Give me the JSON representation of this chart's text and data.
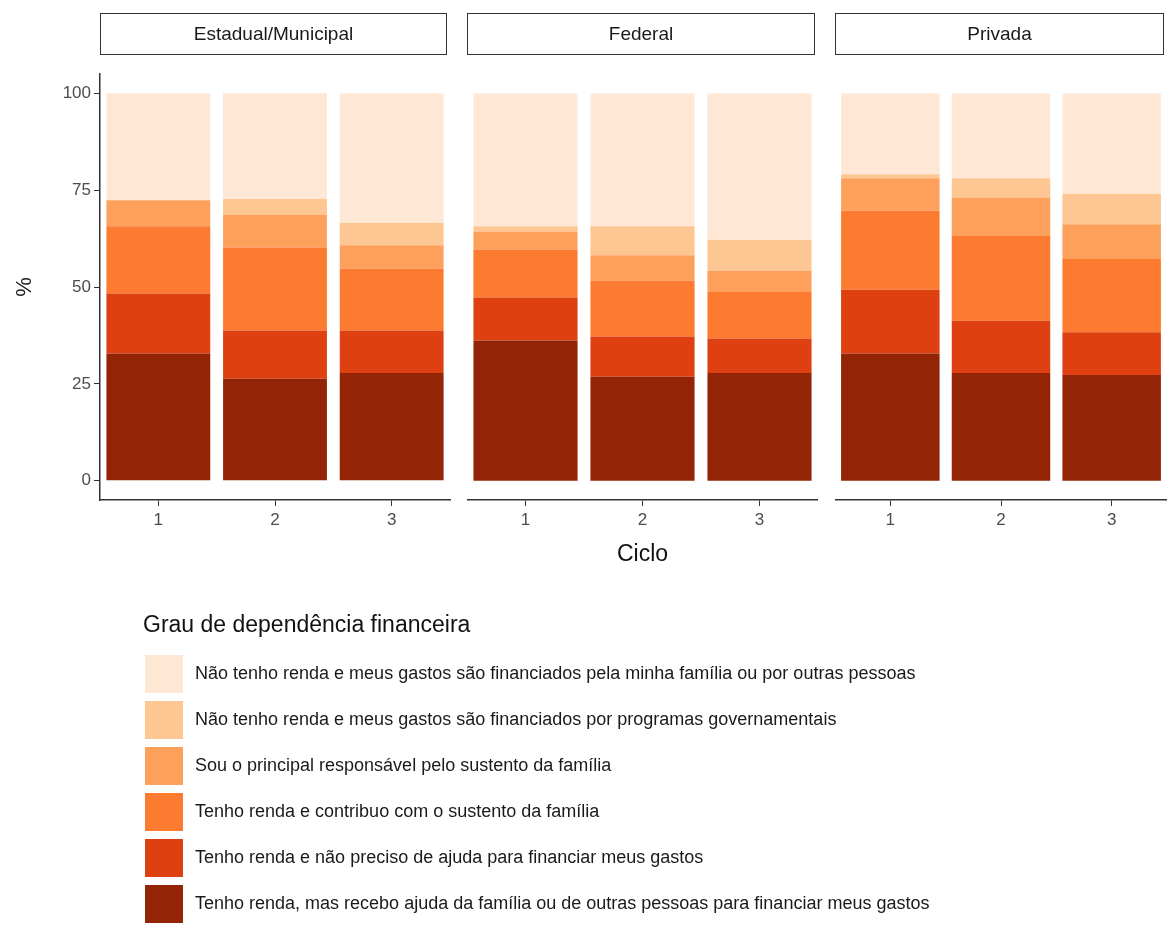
{
  "chart_data": [
    {
      "type": "bar",
      "stacked": true,
      "title": "Estadual/Municipal",
      "ylabel": "%",
      "legend": "bottom",
      "legend_title": "Grau de dependência financeira",
      "categories": [
        "1",
        "2",
        "3"
      ],
      "ylim": [
        -5,
        105
      ],
      "yticks": [
        0,
        25,
        50,
        75,
        100
      ],
      "grid": false,
      "series": [
        {
          "name": "Tenho renda, mas recebo ajuda da família ou de outras pessoas para financiar meus gastos",
          "color": "#932406",
          "values": [
            32.8,
            26.3,
            27.8
          ]
        },
        {
          "name": "Tenho renda e não preciso de ajuda para financiar meus gastos",
          "color": "#de4011",
          "values": [
            15.5,
            12.5,
            11.0
          ]
        },
        {
          "name": "Tenho renda e contribuo com o sustento da família",
          "color": "#fc7b31",
          "values": [
            17.4,
            21.4,
            15.9
          ]
        },
        {
          "name": "Sou o principal responsável pelo sustento da família",
          "color": "#fca05c",
          "values": [
            6.7,
            8.4,
            6.1
          ]
        },
        {
          "name": "Não tenho renda e meus gastos são financiados por programas governamentais",
          "color": "#fdc692",
          "values": [
            0,
            4.1,
            5.8
          ]
        },
        {
          "name": "Não tenho renda e meus gastos são financiados pela minha família ou por outras pessoas",
          "color": "#fee8d5",
          "values": [
            27.6,
            27.3,
            33.4
          ]
        }
      ]
    },
    {
      "type": "bar",
      "stacked": true,
      "title": "Federal",
      "xlabel": "Ciclo",
      "categories": [
        "1",
        "2",
        "3"
      ],
      "ylim": [
        -5,
        100
      ],
      "yticks": [
        0,
        25,
        50,
        75,
        100
      ],
      "grid": false,
      "tick_labels": "x",
      "series": [
        {
          "color": "#932406",
          "values": [
            36.2,
            26.8,
            27.8
          ]
        },
        {
          "color": "#de4011",
          "values": [
            11.1,
            10.4,
            8.9
          ]
        },
        {
          "color": "#fc7b31",
          "values": [
            12.4,
            14.5,
            12.0
          ]
        },
        {
          "color": "#fca05c",
          "values": [
            4.6,
            6.5,
            5.5
          ]
        },
        {
          "color": "#fdc692",
          "values": [
            1.4,
            7.5,
            8.0
          ]
        },
        {
          "color": "#fee8d5",
          "values": [
            34.3,
            34.3,
            37.8
          ]
        }
      ]
    },
    {
      "type": "bar",
      "stacked": true,
      "title": "Privada",
      "categories": [
        "1",
        "2",
        "3"
      ],
      "ylim": [
        -5,
        100
      ],
      "yticks": [
        0,
        25,
        50,
        75,
        100
      ],
      "grid": false,
      "tick_labels": "x",
      "series": [
        {
          "color": "#932406",
          "values": [
            32.8,
            27.8,
            27.3
          ]
        },
        {
          "color": "#de4011",
          "values": [
            16.5,
            13.5,
            11.0
          ]
        },
        {
          "color": "#fc7b31",
          "values": [
            20.4,
            21.9,
            18.9
          ]
        },
        {
          "color": "#fca05c",
          "values": [
            8.4,
            9.9,
            9.0
          ]
        },
        {
          "color": "#fdc692",
          "values": [
            1.0,
            5.0,
            7.9
          ]
        },
        {
          "color": "#fee8d5",
          "values": [
            20.9,
            21.9,
            25.9
          ]
        }
      ]
    }
  ]
}
